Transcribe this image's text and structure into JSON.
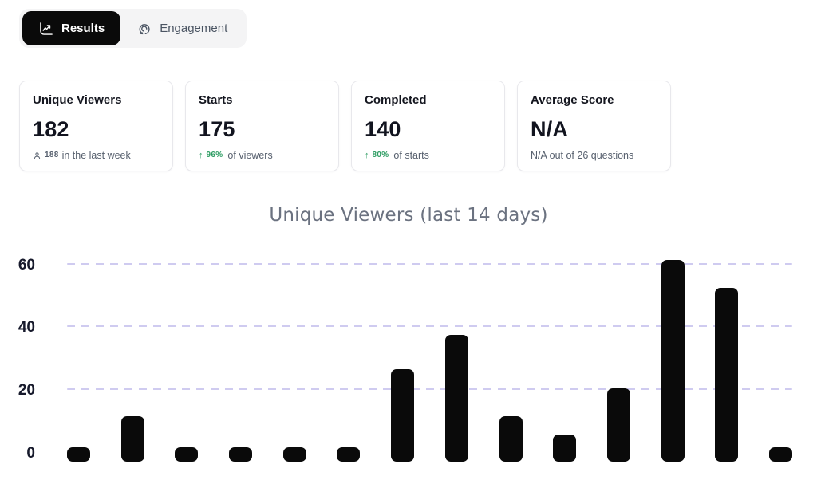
{
  "tab_bar": {
    "results_label": "Results",
    "engagement_label": "Engagement"
  },
  "stat_cards": {
    "unique_viewers": {
      "title": "Unique Viewers",
      "value": "182",
      "footer_count": "188",
      "footer_text": "in the last week"
    },
    "starts": {
      "title": "Starts",
      "value": "175",
      "delta_arrow": "↑",
      "delta": "96%",
      "footer_text": "of viewers"
    },
    "completed": {
      "title": "Completed",
      "value": "140",
      "delta_arrow": "↑",
      "delta": "80%",
      "footer_text": "of starts"
    },
    "average_score": {
      "title": "Average Score",
      "value": "N/A",
      "footer_text": "N/A out of 26 questions"
    }
  },
  "chart_data": {
    "type": "bar",
    "title": "Unique Viewers (last 14 days)",
    "values": [
      2,
      12,
      2,
      2,
      2,
      2,
      27,
      38,
      12,
      6,
      21,
      62,
      53,
      2
    ],
    "categories": [],
    "yticks": [
      0,
      20,
      40,
      60
    ],
    "ytick_labels": [
      "60",
      "40",
      "20",
      "0"
    ],
    "ylim": [
      0,
      64
    ],
    "xlabel": "",
    "ylabel": "",
    "grid": "horizontal-dashed",
    "legend": "none",
    "bar_color": "#0a0a0a",
    "gridline_color": "#cfcbf0",
    "title_color": "#6b7280"
  },
  "colors": {
    "accent_black": "#0a0a0a",
    "tab_container_bg": "#f4f4f5",
    "positive_green": "#2e9d63",
    "muted_text": "#57606e",
    "card_border": "#e8e8ec"
  }
}
